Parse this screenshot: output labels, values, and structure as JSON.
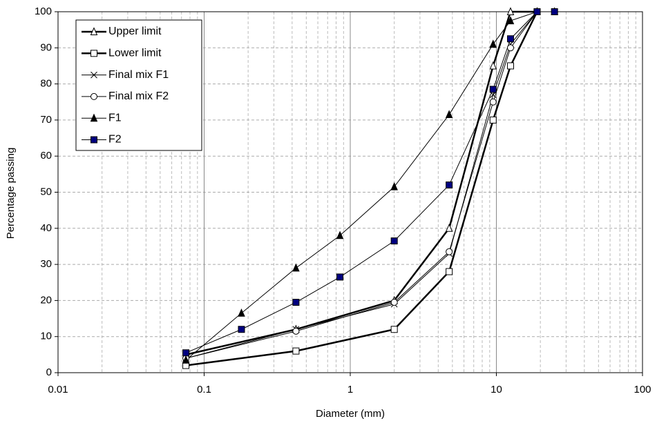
{
  "chart_data": {
    "type": "line",
    "x_label": "Diameter (mm)",
    "y_label": "Percentage passing",
    "xscale": "log",
    "xlim": [
      0.01,
      100
    ],
    "xticks": [
      0.01,
      0.1,
      1,
      10,
      100
    ],
    "ylim": [
      0,
      100
    ],
    "yticks": [
      0,
      10,
      20,
      30,
      40,
      50,
      60,
      70,
      80,
      90,
      100
    ],
    "grid": true,
    "legend": "upper left",
    "series": [
      {
        "name": "Upper limit",
        "color": "#000000",
        "marker": "open-triangle",
        "line_width": 2.5,
        "x": [
          0.075,
          0.425,
          2,
          4.75,
          9.5,
          12.5,
          19
        ],
        "values": [
          5,
          12,
          20,
          40,
          85,
          100,
          100
        ]
      },
      {
        "name": "Lower limit",
        "color": "#000000",
        "marker": "open-square",
        "line_width": 2.5,
        "x": [
          0.075,
          0.425,
          2,
          4.75,
          9.5,
          12.5,
          19
        ],
        "values": [
          2,
          6,
          12,
          28,
          70,
          85,
          100
        ]
      },
      {
        "name": "Final mix F1",
        "color": "#000000",
        "marker": "cross",
        "line_width": 1,
        "x": [
          0.075,
          0.425,
          2,
          4.75,
          9.5,
          12.5,
          19
        ],
        "values": [
          4,
          12,
          19,
          33,
          77,
          91,
          100
        ]
      },
      {
        "name": "Final mix F2",
        "color": "#000000",
        "marker": "open-circle",
        "line_width": 1,
        "x": [
          0.075,
          0.425,
          2,
          4.75,
          9.5,
          12.5,
          19
        ],
        "values": [
          4,
          11.5,
          19.5,
          33.5,
          75,
          90,
          100
        ]
      },
      {
        "name": "F1",
        "color": "#000000",
        "marker": "filled-triangle",
        "line_width": 1,
        "x": [
          0.075,
          0.18,
          0.425,
          0.85,
          2,
          4.75,
          9.5,
          12.5,
          19,
          25
        ],
        "values": [
          3.5,
          16.5,
          29,
          38,
          51.5,
          71.5,
          91,
          97.5,
          100,
          100
        ]
      },
      {
        "name": "F2",
        "color": "#000000",
        "marker_color": "#000080",
        "marker": "filled-square",
        "line_width": 1,
        "x": [
          0.075,
          0.18,
          0.425,
          0.85,
          2,
          4.75,
          9.5,
          12.5,
          19,
          25
        ],
        "values": [
          5.5,
          12,
          19.5,
          26.5,
          36.5,
          52,
          78.5,
          92.5,
          100,
          100
        ]
      }
    ]
  }
}
